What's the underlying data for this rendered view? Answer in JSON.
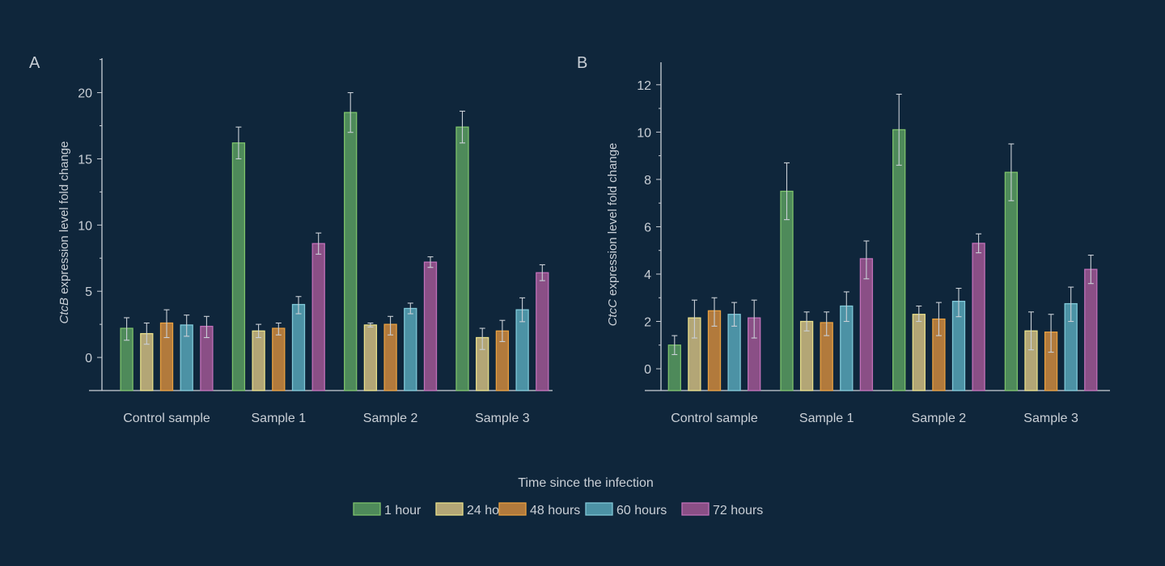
{
  "legend": {
    "title": "Time since the infection",
    "placement": "bottom-center",
    "entries": [
      {
        "label": "1 hour",
        "fill": "#4e8a5a",
        "stroke": "#7dc26b"
      },
      {
        "label": "24 hours",
        "fill": "#b3a676",
        "stroke": "#e8df8a"
      },
      {
        "label": "48 hours",
        "fill": "#b27a3c",
        "stroke": "#e8a040"
      },
      {
        "label": "60 hours",
        "fill": "#4c92a5",
        "stroke": "#80c8d8"
      },
      {
        "label": "72 hours",
        "fill": "#8a4f86",
        "stroke": "#c070b8"
      }
    ]
  },
  "colors": {
    "background": "#0f263b",
    "axis": "#c9cfd6",
    "error_bar": "#c9cfd6"
  },
  "chart_data": [
    {
      "panel": "A",
      "type": "bar",
      "ylabel_italic": "CtcB",
      "ylabel": " expression level fold change",
      "categories": [
        "Control sample",
        "Sample 1",
        "Sample 2",
        "Sample 3"
      ],
      "yticks": [
        0,
        5,
        10,
        15,
        20
      ],
      "ylim": [
        -2.5,
        22.6
      ],
      "minor_tick_step": 2.5,
      "grid": false,
      "series": [
        {
          "name": "1 hour",
          "values": [
            2.2,
            16.2,
            18.5,
            17.4
          ],
          "err_low": [
            1.3,
            15.0,
            17.0,
            16.2
          ],
          "err_high": [
            3.0,
            17.4,
            20.0,
            18.6
          ]
        },
        {
          "name": "24 hours",
          "values": [
            1.8,
            2.0,
            2.45,
            1.5
          ],
          "err_low": [
            1.0,
            1.5,
            2.3,
            0.6
          ],
          "err_high": [
            2.6,
            2.5,
            2.6,
            2.2
          ]
        },
        {
          "name": "48 hours",
          "values": [
            2.6,
            2.2,
            2.5,
            2.0
          ],
          "err_low": [
            1.5,
            1.7,
            1.7,
            1.2
          ],
          "err_high": [
            3.6,
            2.6,
            3.1,
            2.8
          ]
        },
        {
          "name": "60 hours",
          "values": [
            2.45,
            4.0,
            3.7,
            3.6
          ],
          "err_low": [
            1.6,
            3.3,
            3.3,
            2.7
          ],
          "err_high": [
            3.2,
            4.6,
            4.1,
            4.5
          ]
        },
        {
          "name": "72 hours",
          "values": [
            2.35,
            8.6,
            7.2,
            6.4
          ],
          "err_low": [
            1.5,
            7.8,
            6.8,
            5.8
          ],
          "err_high": [
            3.1,
            9.4,
            7.6,
            7.0
          ]
        }
      ]
    },
    {
      "panel": "B",
      "type": "bar",
      "ylabel_italic": "CtcC",
      "ylabel": " expression level fold change",
      "categories": [
        "Control sample",
        "Sample 1",
        "Sample 2",
        "Sample 3"
      ],
      "yticks": [
        0,
        2,
        4,
        6,
        8,
        10,
        12
      ],
      "ylim": [
        -0.92,
        12.95
      ],
      "minor_tick_step": 1,
      "grid": false,
      "series": [
        {
          "name": "1 hour",
          "values": [
            1.0,
            7.5,
            10.1,
            8.3
          ],
          "err_low": [
            0.6,
            6.3,
            8.6,
            7.1
          ],
          "err_high": [
            1.4,
            8.7,
            11.6,
            9.5
          ]
        },
        {
          "name": "24 hours",
          "values": [
            2.15,
            2.0,
            2.3,
            1.6
          ],
          "err_low": [
            1.3,
            1.6,
            2.0,
            0.8
          ],
          "err_high": [
            2.9,
            2.4,
            2.65,
            2.4
          ]
        },
        {
          "name": "48 hours",
          "values": [
            2.45,
            1.95,
            2.1,
            1.55
          ],
          "err_low": [
            1.8,
            1.4,
            1.4,
            0.7
          ],
          "err_high": [
            3.0,
            2.4,
            2.8,
            2.3
          ]
        },
        {
          "name": "60 hours",
          "values": [
            2.3,
            2.65,
            2.85,
            2.75
          ],
          "err_low": [
            1.8,
            2.0,
            2.2,
            2.0
          ],
          "err_high": [
            2.8,
            3.25,
            3.4,
            3.45
          ]
        },
        {
          "name": "72 hours",
          "values": [
            2.15,
            4.65,
            5.3,
            4.2
          ],
          "err_low": [
            1.3,
            3.8,
            4.9,
            3.6
          ],
          "err_high": [
            2.9,
            5.4,
            5.7,
            4.8
          ]
        }
      ]
    }
  ]
}
